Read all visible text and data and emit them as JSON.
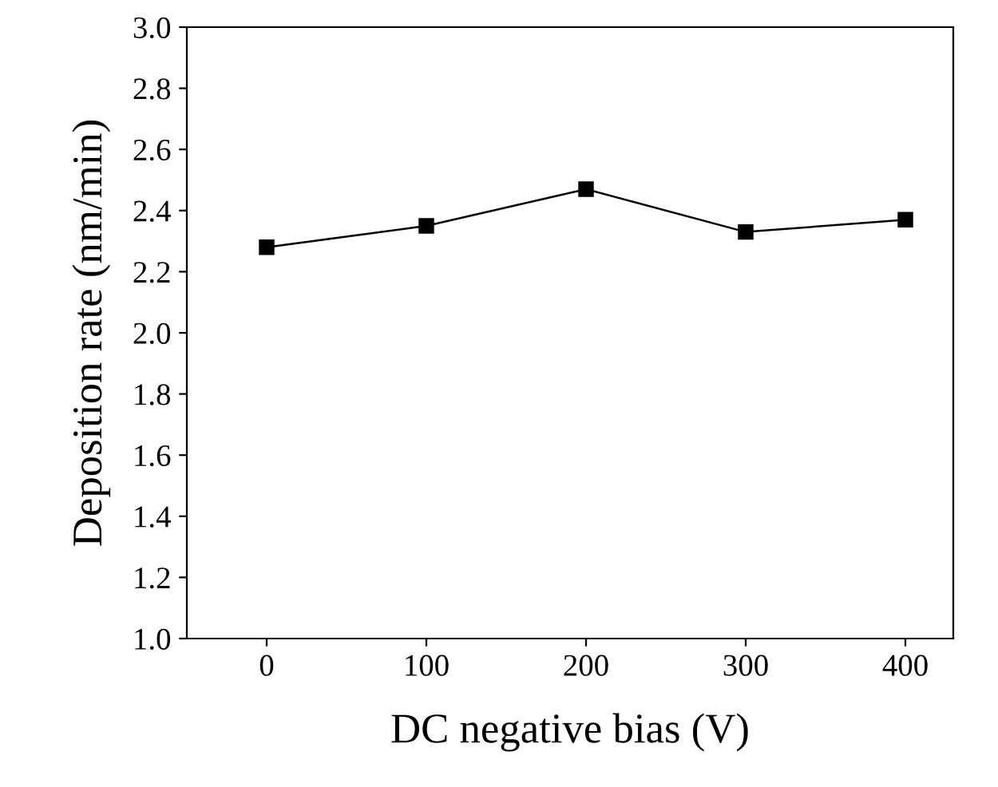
{
  "chart_data": {
    "type": "line",
    "xlabel": "DC negative bias (V)",
    "ylabel": "Deposition rate (nm/min)",
    "x": [
      0,
      100,
      200,
      300,
      400
    ],
    "series": [
      {
        "color": "#000000",
        "values": [
          2.28,
          2.35,
          2.47,
          2.33,
          2.37
        ]
      }
    ],
    "marker": "square",
    "line_style": "solid",
    "grid": false,
    "legend": false,
    "xlim": [
      -50,
      430
    ],
    "xticks": [
      0,
      100,
      200,
      300,
      400
    ],
    "ylim": [
      1.0,
      3.0
    ],
    "yticks": [
      {
        "value": 1.0,
        "label": "1.0"
      },
      {
        "value": 1.2,
        "label": "1.2"
      },
      {
        "value": 1.4,
        "label": "1.4"
      },
      {
        "value": 1.6,
        "label": "1.6"
      },
      {
        "value": 1.8,
        "label": "1.8"
      },
      {
        "value": 2.0,
        "label": "2.0"
      },
      {
        "value": 2.2,
        "label": "2.2"
      },
      {
        "value": 2.4,
        "label": "2.4"
      },
      {
        "value": 2.6,
        "label": "2.6"
      },
      {
        "value": 2.8,
        "label": "2.8"
      },
      {
        "value": 3.0,
        "label": "3.0"
      }
    ]
  }
}
